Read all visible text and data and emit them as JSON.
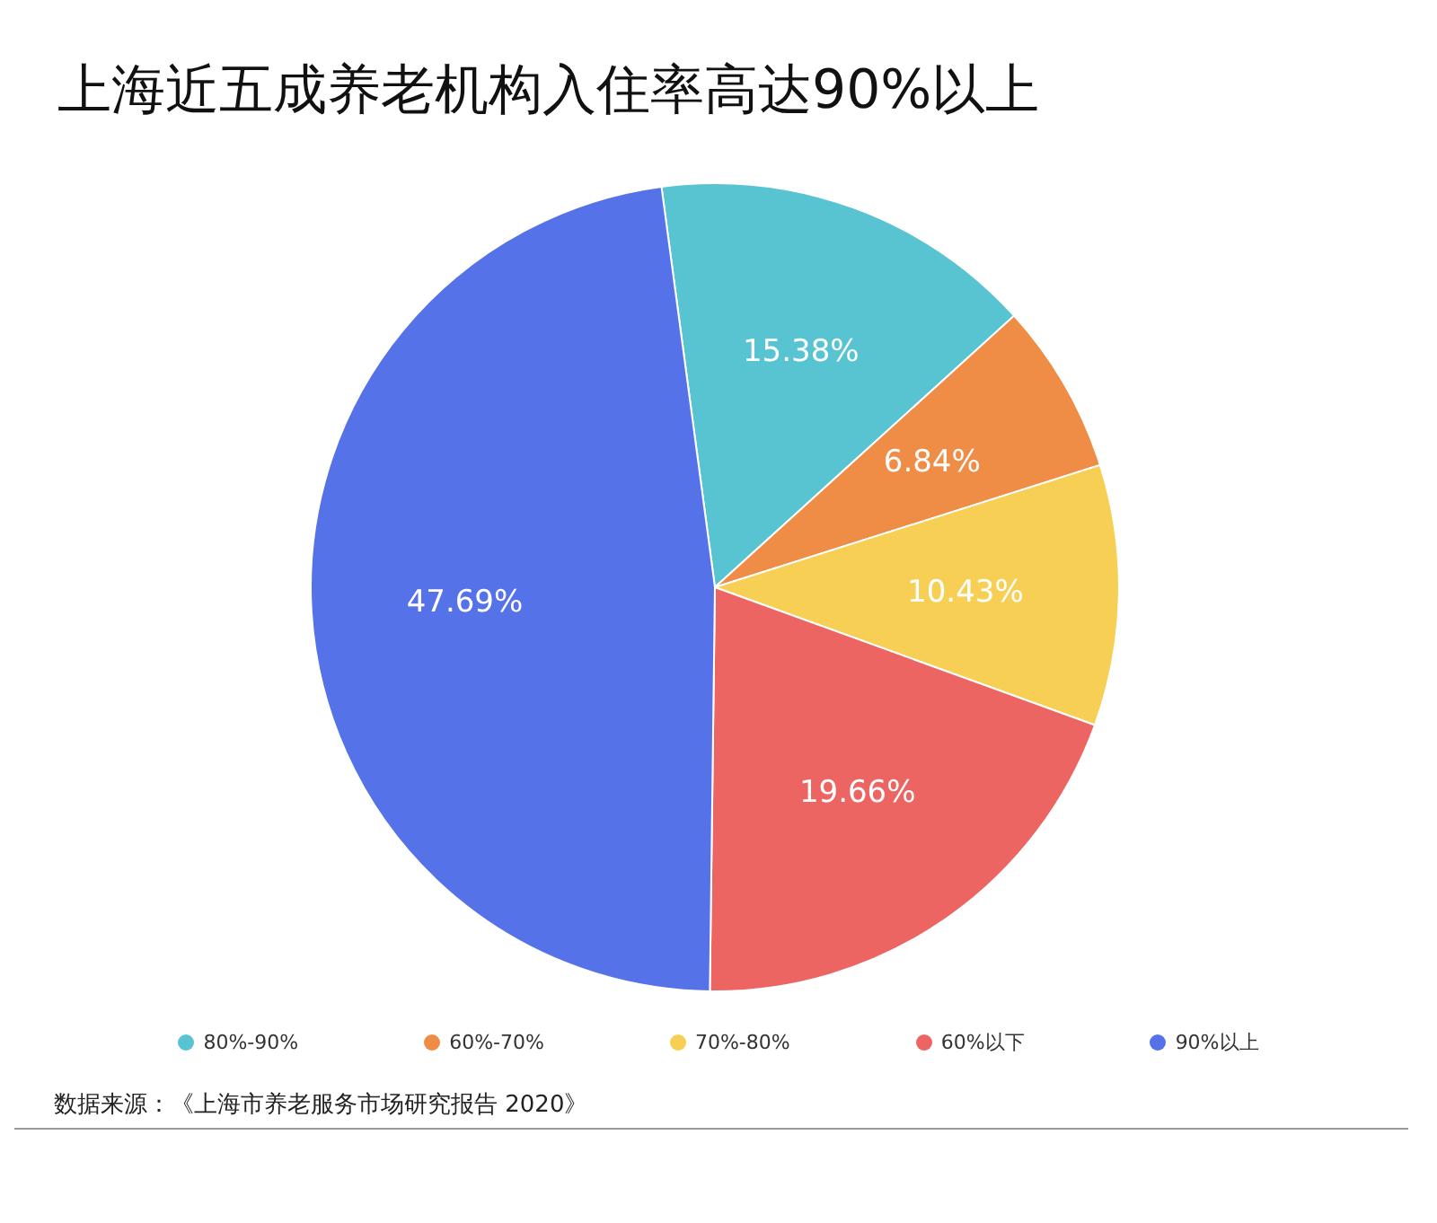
{
  "chart_data": {
    "type": "pie",
    "title": "上海近五成养老机构入住率高达90%以上",
    "categories": [
      "80%-90%",
      "60%-70%",
      "70%-80%",
      "60%以下",
      "90%以上"
    ],
    "values": [
      15.38,
      6.84,
      10.43,
      19.66,
      47.69
    ],
    "value_labels": [
      "15.38%",
      "6.84%",
      "10.43%",
      "19.66%",
      "47.69%"
    ],
    "colors": [
      "#58c4d1",
      "#ef8c45",
      "#f8cf55",
      "#ec6562",
      "#5572e8"
    ],
    "legend": "bottom",
    "annotations": [
      "数据来源：《上海市养老服务市场研究报告 2020》"
    ]
  }
}
